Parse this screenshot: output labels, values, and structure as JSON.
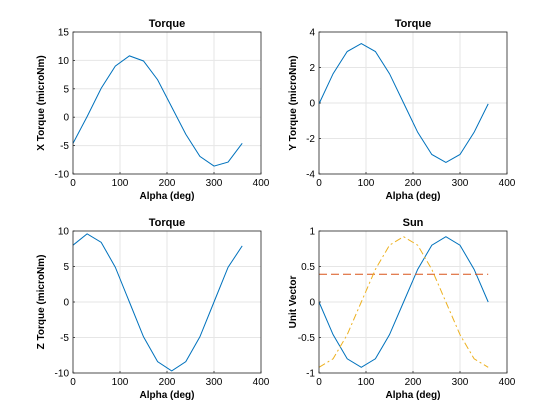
{
  "chart_data": [
    {
      "type": "line",
      "title": "Torque",
      "xlabel": "Alpha (deg)",
      "ylabel": "X Torque (microNm)",
      "xlim": [
        0,
        400
      ],
      "ylim": [
        -10,
        15
      ],
      "xticks": [
        "0",
        "100",
        "200",
        "300",
        "400"
      ],
      "yticks": [
        "-10",
        "-5",
        "0",
        "5",
        "10",
        "15"
      ],
      "grid": true,
      "series": [
        {
          "color": "#0072bd",
          "style": "solid",
          "x": [
            0,
            30,
            60,
            90,
            120,
            150,
            180,
            210,
            240,
            270,
            300,
            330,
            360
          ],
          "y": [
            -4.6,
            0.1,
            5.1,
            9.0,
            10.8,
            9.9,
            6.6,
            1.8,
            -3.0,
            -6.9,
            -8.6,
            -7.9,
            -4.6
          ]
        }
      ]
    },
    {
      "type": "line",
      "title": "Torque",
      "xlabel": "Alpha (deg)",
      "ylabel": "Y Torque (microNm)",
      "xlim": [
        0,
        400
      ],
      "ylim": [
        -4,
        4
      ],
      "xticks": [
        "0",
        "100",
        "200",
        "300",
        "400"
      ],
      "yticks": [
        "-4",
        "-2",
        "0",
        "2",
        "4"
      ],
      "grid": true,
      "series": [
        {
          "color": "#0072bd",
          "style": "solid",
          "x": [
            0,
            30,
            60,
            90,
            120,
            150,
            180,
            210,
            240,
            270,
            300,
            330,
            360
          ],
          "y": [
            -0.05,
            1.65,
            2.9,
            3.35,
            2.9,
            1.65,
            0.0,
            -1.65,
            -2.9,
            -3.35,
            -2.9,
            -1.65,
            -0.05
          ]
        }
      ]
    },
    {
      "type": "line",
      "title": "Torque",
      "xlabel": "Alpha (deg)",
      "ylabel": "Z Torque (microNm)",
      "xlim": [
        0,
        400
      ],
      "ylim": [
        -10,
        10
      ],
      "xticks": [
        "0",
        "100",
        "200",
        "300",
        "400"
      ],
      "yticks": [
        "-10",
        "-5",
        "0",
        "5",
        "10"
      ],
      "grid": true,
      "series": [
        {
          "color": "#0072bd",
          "style": "solid",
          "x": [
            0,
            30,
            60,
            90,
            120,
            150,
            180,
            210,
            240,
            270,
            300,
            330,
            360
          ],
          "y": [
            8.0,
            9.6,
            8.4,
            4.9,
            0.0,
            -4.9,
            -8.4,
            -9.7,
            -8.4,
            -4.9,
            0.0,
            4.9,
            7.9
          ]
        }
      ]
    },
    {
      "type": "line",
      "title": "Sun",
      "xlabel": "Alpha (deg)",
      "ylabel": "Unit Vector",
      "xlim": [
        0,
        400
      ],
      "ylim": [
        -1,
        1
      ],
      "xticks": [
        "0",
        "100",
        "200",
        "300",
        "400"
      ],
      "yticks": [
        "-1",
        "-0.5",
        "0",
        "0.5",
        "1"
      ],
      "grid": true,
      "series": [
        {
          "color": "#0072bd",
          "style": "solid",
          "x": [
            0,
            30,
            60,
            90,
            120,
            150,
            180,
            210,
            240,
            270,
            300,
            330,
            360
          ],
          "y": [
            0.0,
            -0.46,
            -0.8,
            -0.92,
            -0.8,
            -0.46,
            0.0,
            0.46,
            0.8,
            0.92,
            0.8,
            0.46,
            0.0
          ]
        },
        {
          "color": "#d95319",
          "style": "dashed",
          "x": [
            0,
            360
          ],
          "y": [
            0.39,
            0.39
          ]
        },
        {
          "color": "#edb120",
          "style": "dashdot",
          "x": [
            0,
            30,
            60,
            90,
            120,
            150,
            180,
            210,
            240,
            270,
            300,
            330,
            360
          ],
          "y": [
            -0.92,
            -0.8,
            -0.46,
            0.0,
            0.46,
            0.8,
            0.92,
            0.8,
            0.46,
            0.0,
            -0.46,
            -0.8,
            -0.92
          ]
        }
      ]
    }
  ]
}
